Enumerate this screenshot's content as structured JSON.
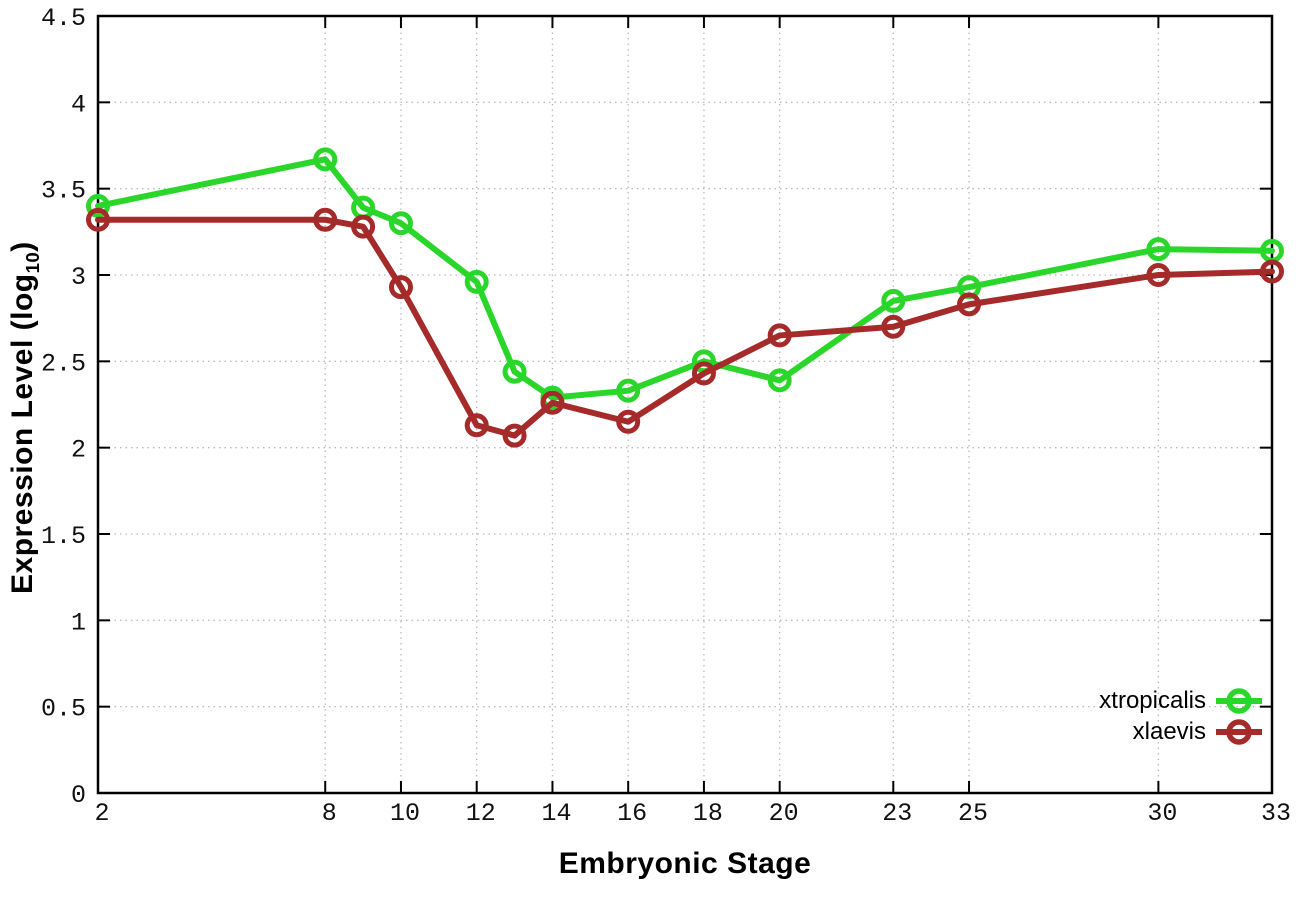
{
  "chart_data": {
    "type": "line",
    "title": "",
    "xlabel": "Embryonic Stage",
    "ylabel": "Expression Level (log10)",
    "ylabel_parts": {
      "prefix": "Expression Level (log",
      "sub": "10",
      "suffix": ")"
    },
    "xlim": [
      2,
      33
    ],
    "ylim": [
      0,
      4.5
    ],
    "grid": true,
    "legend_position": "bottom-right",
    "x": [
      2,
      8,
      9,
      10,
      12,
      13,
      14,
      16,
      18,
      20,
      23,
      25,
      30,
      33
    ],
    "xticks": [
      2,
      8,
      10,
      12,
      14,
      16,
      18,
      20,
      23,
      25,
      30,
      33
    ],
    "xtick_labels": [
      "2",
      "8",
      "10",
      "12",
      "14",
      "16",
      "18",
      "20",
      "23",
      "25",
      "30",
      "33"
    ],
    "yticks": [
      0,
      0.5,
      1,
      1.5,
      2,
      2.5,
      3,
      3.5,
      4,
      4.5
    ],
    "ytick_labels": [
      "0",
      "0.5",
      "1",
      "1.5",
      "2",
      "2.5",
      "3",
      "3.5",
      "4",
      "4.5"
    ],
    "series": [
      {
        "name": "xtropicalis",
        "color": "#2BD62B",
        "values": [
          3.4,
          3.67,
          3.39,
          3.3,
          2.96,
          2.44,
          2.29,
          2.33,
          2.5,
          2.39,
          2.85,
          2.93,
          3.15,
          3.14
        ]
      },
      {
        "name": "xlaevis",
        "color": "#A52A2A",
        "values": [
          3.32,
          3.32,
          3.28,
          2.93,
          2.13,
          2.07,
          2.26,
          2.15,
          2.43,
          2.65,
          2.7,
          2.83,
          3.0,
          3.02
        ]
      }
    ]
  },
  "colors": {
    "background": "#FFFFFF",
    "axis": "#000000",
    "grid": "#BBBBBB",
    "tick_text": "#111111"
  }
}
